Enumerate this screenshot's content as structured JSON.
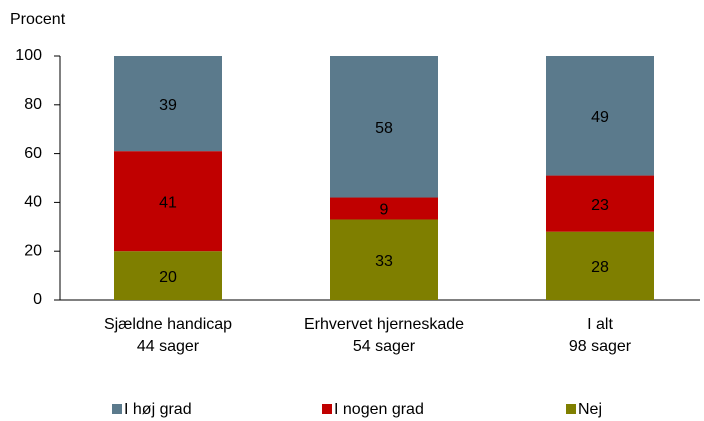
{
  "chart_data": {
    "type": "stacked_bar",
    "y_label": "Procent",
    "categories": [
      [
        "Sjældne handicap",
        "44 sager"
      ],
      [
        "Erhvervet hjerneskade",
        "54 sager"
      ],
      [
        "I alt",
        "98 sager"
      ]
    ],
    "series": [
      {
        "name": "I høj grad",
        "color": "#5b7a8c",
        "values": [
          39,
          58,
          49
        ]
      },
      {
        "name": "I nogen grad",
        "color": "#c00000",
        "values": [
          41,
          9,
          23
        ]
      },
      {
        "name": "Nej",
        "color": "#7f7f00",
        "values": [
          20,
          33,
          28
        ]
      }
    ],
    "ylim": [
      0,
      100
    ],
    "yticks": [
      0,
      20,
      40,
      60,
      80,
      100
    ],
    "grid": false,
    "legend": "bottom"
  }
}
